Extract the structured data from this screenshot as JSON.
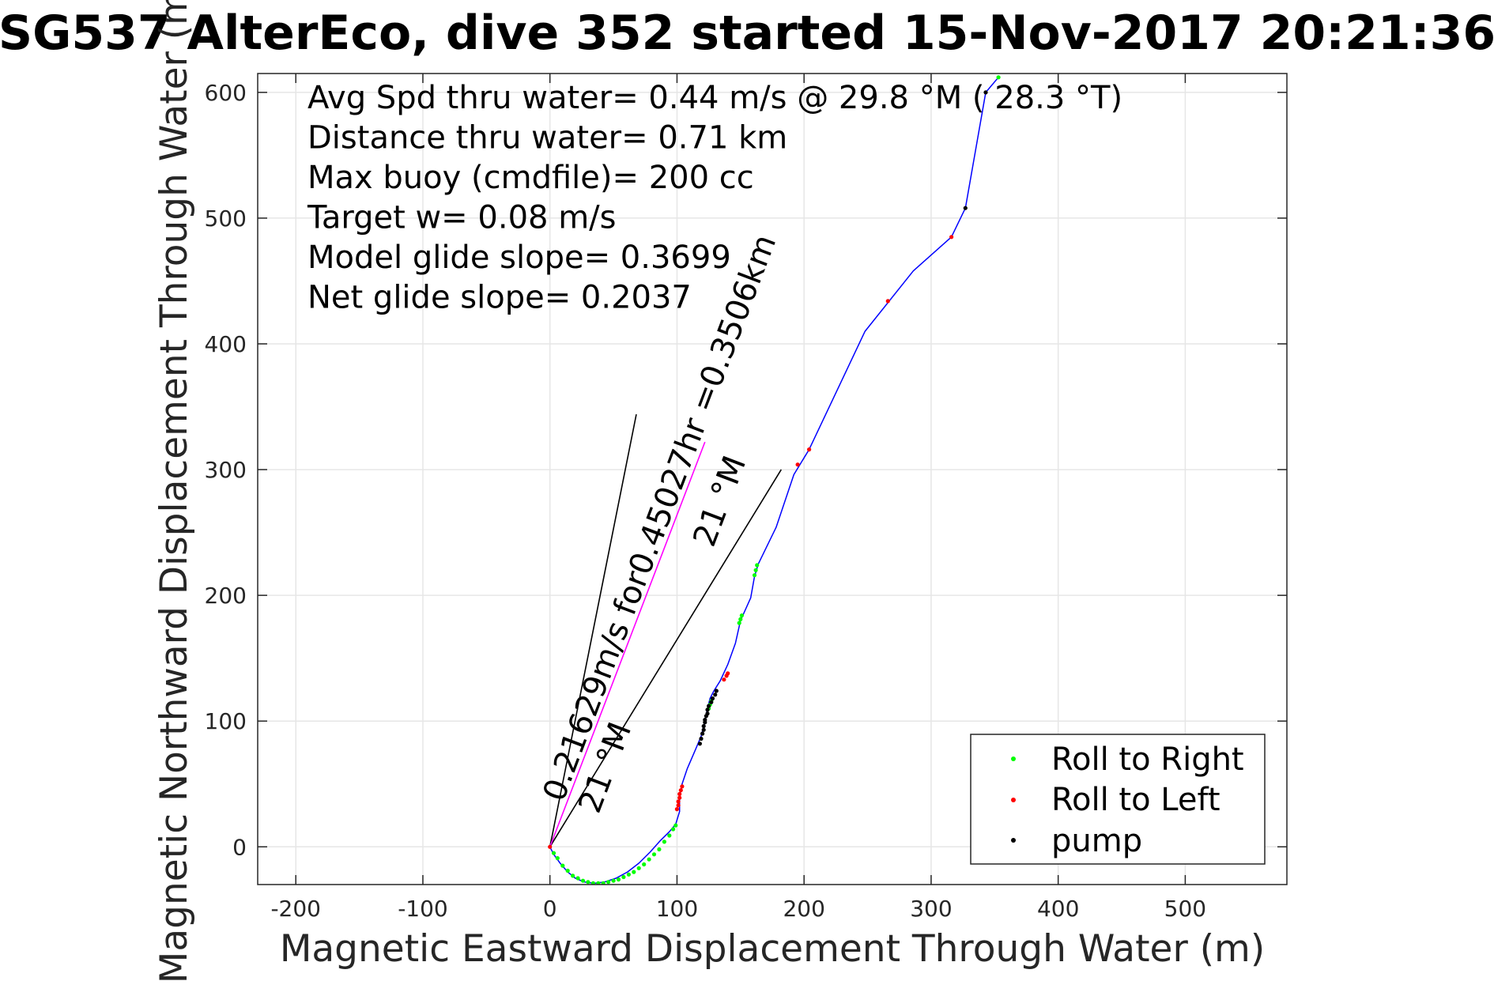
{
  "chart_data": {
    "type": "line",
    "title": "SG537 AlterEco, dive 352 started 15-Nov-2017 20:21:36",
    "xlabel": "Magnetic Eastward Displacement Through Water (m)",
    "ylabel": "Magnetic Northward Displacement Through Water (m)",
    "xlim": [
      -230,
      580
    ],
    "ylim": [
      -30,
      615
    ],
    "xticks": [
      -200,
      -100,
      0,
      100,
      200,
      300,
      400,
      500
    ],
    "yticks": [
      0,
      100,
      200,
      300,
      400,
      500,
      600
    ],
    "grid": true,
    "legend_position": "bottom-right",
    "colors": {
      "track": "#0000ff",
      "roll_right": "#00ff00",
      "roll_left": "#ff0000",
      "pump": "#000000",
      "current_track": "#ff00ff",
      "grid": "#e6e6e6"
    },
    "annotations": [
      "Avg Spd thru water=  0.44 m/s @  29.8 °M ( 28.3 °T)",
      "Distance thru water=  0.71 km",
      "Max buoy (cmdfile)= 200 cc",
      "Target w= 0.08 m/s",
      "Model glide slope= 0.3699",
      "Net glide slope= 0.2037"
    ],
    "rotated_labels": {
      "current": "0.21629m/s for0.45027hr =0.3506km",
      "heading_1": "21 °M",
      "heading_2": "21 °M"
    },
    "legend": [
      {
        "name": "Roll to Right",
        "color": "#00ff00"
      },
      {
        "name": "Roll to Left",
        "color": "#ff0000"
      },
      {
        "name": "pump",
        "color": "#000000"
      }
    ],
    "track": {
      "x": [
        0,
        3,
        8,
        14,
        20,
        27,
        35,
        43,
        52,
        61,
        70,
        79,
        87,
        94,
        99,
        102,
        102,
        104,
        108,
        114,
        119,
        122,
        124,
        126,
        129,
        134,
        140,
        146,
        150,
        158,
        161,
        164,
        178,
        192,
        204,
        248,
        286,
        316,
        327,
        343,
        353
      ],
      "y": [
        0,
        -6,
        -13,
        -20,
        -25,
        -28,
        -29,
        -28,
        -25,
        -20,
        -13,
        -4,
        5,
        12,
        18,
        28,
        40,
        50,
        62,
        76,
        88,
        100,
        110,
        118,
        124,
        132,
        145,
        162,
        180,
        198,
        215,
        225,
        254,
        296,
        316,
        410,
        458,
        485,
        508,
        600,
        612
      ]
    },
    "roll_right_points": {
      "x": [
        3,
        6,
        10,
        14,
        18,
        22,
        26,
        30,
        34,
        38,
        42,
        46,
        50,
        54,
        58,
        62,
        66,
        70,
        74,
        78,
        82,
        86,
        90,
        94,
        97,
        99,
        125,
        126,
        127,
        149,
        150,
        151,
        161,
        162,
        163,
        353
      ],
      "y": [
        -5,
        -9,
        -15,
        -19,
        -23,
        -25,
        -27,
        -28,
        -29,
        -29,
        -29,
        -28,
        -27,
        -26,
        -24,
        -22,
        -20,
        -17,
        -14,
        -10,
        -6,
        -2,
        4,
        9,
        14,
        17,
        110,
        113,
        116,
        178,
        181,
        184,
        216,
        220,
        224,
        612
      ]
    },
    "roll_left_points": {
      "x": [
        0,
        100,
        101,
        101,
        102,
        102,
        103,
        104,
        137,
        139,
        140,
        195,
        204,
        266,
        316
      ],
      "y": [
        0,
        30,
        33,
        36,
        39,
        42,
        45,
        48,
        133,
        136,
        138,
        304,
        316,
        434,
        485
      ]
    },
    "pump_points": {
      "x": [
        118,
        119,
        120,
        121,
        121,
        122,
        122,
        123,
        124,
        124,
        125,
        127,
        128,
        130,
        131,
        327,
        343
      ],
      "y": [
        82,
        86,
        90,
        93,
        96,
        99,
        101,
        104,
        106,
        109,
        112,
        115,
        118,
        121,
        124,
        508,
        600
      ]
    },
    "current_line": {
      "x": [
        0,
        122
      ],
      "y": [
        0,
        322
      ]
    },
    "heading_line_1": {
      "x": [
        0,
        68
      ],
      "y": [
        0,
        344
      ]
    },
    "heading_line_2": {
      "x": [
        0,
        182
      ],
      "y": [
        0,
        300
      ]
    }
  }
}
